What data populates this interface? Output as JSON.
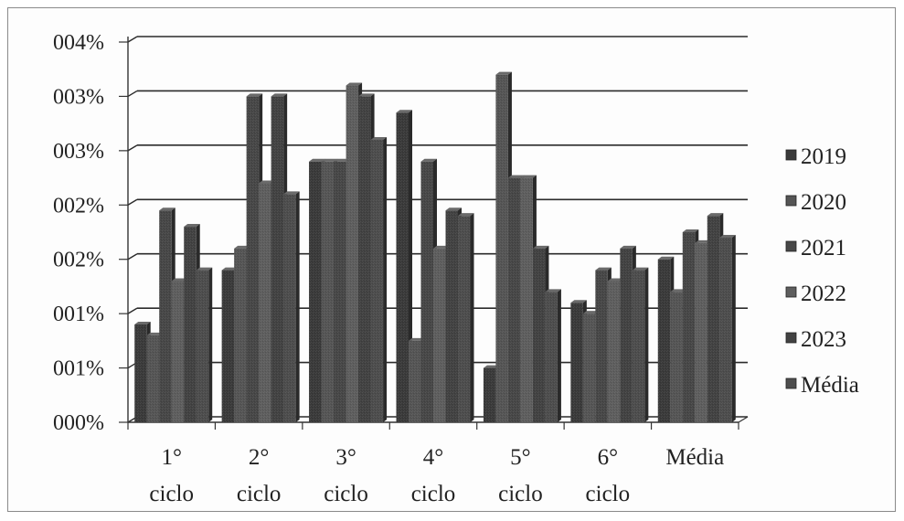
{
  "chart_data": {
    "type": "bar",
    "title": "",
    "xlabel": "",
    "ylabel": "",
    "y_tick_labels": [
      "000%",
      "001%",
      "001%",
      "002%",
      "002%",
      "003%",
      "003%",
      "004%"
    ],
    "ylim": [
      0,
      0.035
    ],
    "grid": "horizontal",
    "legend_position": "right",
    "categories": [
      [
        "1°",
        "ciclo"
      ],
      [
        "2°",
        "ciclo"
      ],
      [
        "3°",
        "ciclo"
      ],
      [
        "4°",
        "ciclo"
      ],
      [
        "5°",
        "ciclo"
      ],
      [
        "6°",
        "ciclo"
      ],
      [
        "Média"
      ]
    ],
    "series": [
      {
        "name": "2019",
        "color": "#3a3a3a",
        "values": [
          0.009,
          0.014,
          0.024,
          0.0285,
          0.005,
          0.011,
          0.015
        ]
      },
      {
        "name": "2020",
        "color": "#555555",
        "values": [
          0.008,
          0.016,
          0.024,
          0.0075,
          0.032,
          0.01,
          0.012
        ]
      },
      {
        "name": "2021",
        "color": "#474747",
        "values": [
          0.0195,
          0.03,
          0.024,
          0.024,
          0.0225,
          0.014,
          0.0175
        ]
      },
      {
        "name": "2022",
        "color": "#5e5e5e",
        "values": [
          0.013,
          0.022,
          0.031,
          0.016,
          0.0225,
          0.013,
          0.0165
        ]
      },
      {
        "name": "2023",
        "color": "#424242",
        "values": [
          0.018,
          0.03,
          0.03,
          0.0195,
          0.016,
          0.016,
          0.019
        ]
      },
      {
        "name": "Média",
        "color": "#4d4d4d",
        "values": [
          0.014,
          0.021,
          0.026,
          0.019,
          0.012,
          0.014,
          0.017
        ]
      }
    ]
  }
}
